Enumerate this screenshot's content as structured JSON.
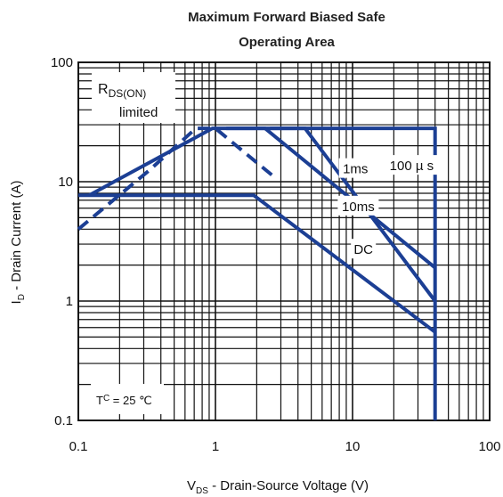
{
  "chart_data": {
    "type": "line",
    "title_line1": "Maximum Forward Biased Safe",
    "title_line2": "Operating Area",
    "xlabel": {
      "prefix": "V",
      "sub": "DS",
      "text": " - Drain-Source Voltage (V)"
    },
    "ylabel": {
      "prefix": "I",
      "sub": "D",
      "text": " - Drain Current (A)"
    },
    "x_scale": "log",
    "y_scale": "log",
    "xlim": [
      0.1,
      100
    ],
    "ylim": [
      0.1,
      100
    ],
    "x_ticks": [
      {
        "value": 0.1,
        "label": "0.1"
      },
      {
        "value": 1,
        "label": "1"
      },
      {
        "value": 10,
        "label": "10"
      },
      {
        "value": 100,
        "label": "100"
      }
    ],
    "y_ticks": [
      {
        "value": 0.1,
        "label": "0.1"
      },
      {
        "value": 1,
        "label": "1"
      },
      {
        "value": 10,
        "label": "10"
      },
      {
        "value": 100,
        "label": "100"
      }
    ],
    "grid": true,
    "colors": {
      "curve": "#1c3f94",
      "grid": "#111111"
    },
    "series": [
      {
        "name": "100 µs",
        "dashed": false,
        "points": [
          [
            0.12,
            7.7
          ],
          [
            0.95,
            28
          ],
          [
            40,
            28
          ],
          [
            40,
            0.1
          ]
        ]
      },
      {
        "name": "1ms",
        "dashed": false,
        "points": [
          [
            1.2,
            28
          ],
          [
            2.3,
            28
          ],
          [
            40,
            1.9
          ]
        ]
      },
      {
        "name": "10ms",
        "dashed": false,
        "points": [
          [
            2.5,
            28
          ],
          [
            4.5,
            28
          ],
          [
            40,
            1.0
          ]
        ]
      },
      {
        "name": "DC",
        "dashed": false,
        "points": [
          [
            0.1,
            7.7
          ],
          [
            1.9,
            7.7
          ],
          [
            40,
            0.55
          ]
        ]
      },
      {
        "name": "RDS(ON) limited",
        "dashed": true,
        "points": [
          [
            0.1,
            4.0
          ],
          [
            0.33,
            12.5
          ],
          [
            0.72,
            28
          ],
          [
            1.0,
            28
          ],
          [
            1.5,
            19
          ],
          [
            2.6,
            11.3
          ]
        ]
      }
    ],
    "annotations": [
      {
        "id": "1ms",
        "text": "1ms",
        "x": 10.5,
        "y": 12.8
      },
      {
        "id": "100us",
        "text": "100 µ s",
        "x": 27,
        "y": 13.6
      },
      {
        "id": "10ms",
        "text": "10ms",
        "x": 11,
        "y": 6.2
      },
      {
        "id": "dc",
        "text": "DC",
        "x": 12,
        "y": 2.7
      }
    ],
    "rds_box": {
      "prefix": "R",
      "sub": "DS(ON)",
      "line2": "limited"
    },
    "temp_box": {
      "prefix": "T",
      "sub": "C",
      "text": " = 25 ℃"
    }
  }
}
